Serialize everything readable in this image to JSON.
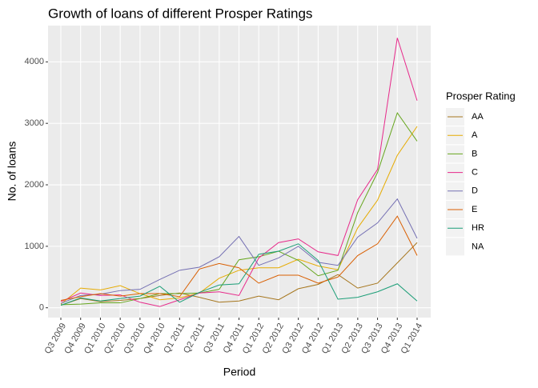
{
  "chart_data": {
    "type": "line",
    "title": "Growth of loans of different Prosper Ratings",
    "x_label": "Period",
    "y_label": "No. of loans",
    "legend_title": "Prosper Rating",
    "categories": [
      "Q3 2009",
      "Q4 2009",
      "Q1 2010",
      "Q2 2010",
      "Q3 2010",
      "Q4 2010",
      "Q1 2011",
      "Q2 2011",
      "Q3 2011",
      "Q4 2011",
      "Q1 2012",
      "Q2 2012",
      "Q3 2012",
      "Q4 2012",
      "Q1 2013",
      "Q2 2013",
      "Q3 2013",
      "Q4 2013",
      "Q1 2014"
    ],
    "series": [
      {
        "name": "AA",
        "color": "#A6761D",
        "values": [
          40,
          150,
          100,
          120,
          150,
          200,
          240,
          170,
          90,
          110,
          190,
          130,
          310,
          380,
          540,
          320,
          400,
          730,
          1060
        ]
      },
      {
        "name": "A",
        "color": "#E6AB02",
        "values": [
          60,
          320,
          290,
          360,
          230,
          130,
          160,
          240,
          480,
          610,
          650,
          650,
          790,
          680,
          620,
          1300,
          1750,
          2480,
          2950
        ]
      },
      {
        "name": "B",
        "color": "#66A61E",
        "values": [
          50,
          60,
          80,
          80,
          150,
          230,
          230,
          240,
          300,
          780,
          830,
          920,
          770,
          520,
          610,
          1550,
          2200,
          3170,
          2710
        ]
      },
      {
        "name": "C",
        "color": "#E7298A",
        "values": [
          100,
          240,
          200,
          210,
          90,
          20,
          130,
          240,
          260,
          200,
          810,
          1060,
          1120,
          910,
          850,
          1760,
          2250,
          4390,
          3370
        ]
      },
      {
        "name": "D",
        "color": "#7570B3",
        "values": [
          70,
          200,
          220,
          280,
          300,
          460,
          610,
          660,
          830,
          1160,
          690,
          810,
          1000,
          740,
          690,
          1150,
          1380,
          1770,
          1130
        ]
      },
      {
        "name": "E",
        "color": "#D95F02",
        "values": [
          120,
          180,
          230,
          190,
          230,
          230,
          180,
          630,
          720,
          650,
          400,
          530,
          530,
          400,
          500,
          850,
          1040,
          1490,
          850
        ]
      },
      {
        "name": "HR",
        "color": "#1B9E77",
        "values": [
          40,
          160,
          110,
          150,
          190,
          350,
          90,
          250,
          370,
          390,
          870,
          920,
          1040,
          770,
          140,
          170,
          260,
          390,
          110
        ]
      },
      {
        "name": "NA",
        "values": [
          null,
          null,
          null,
          null,
          null,
          null,
          null,
          null,
          null,
          null,
          null,
          null,
          null,
          null,
          null,
          null,
          null,
          null,
          null
        ]
      }
    ],
    "ylim": [
      -160,
      4590
    ],
    "yticks": [
      0,
      1000,
      2000,
      3000,
      4000
    ],
    "grid": true
  }
}
